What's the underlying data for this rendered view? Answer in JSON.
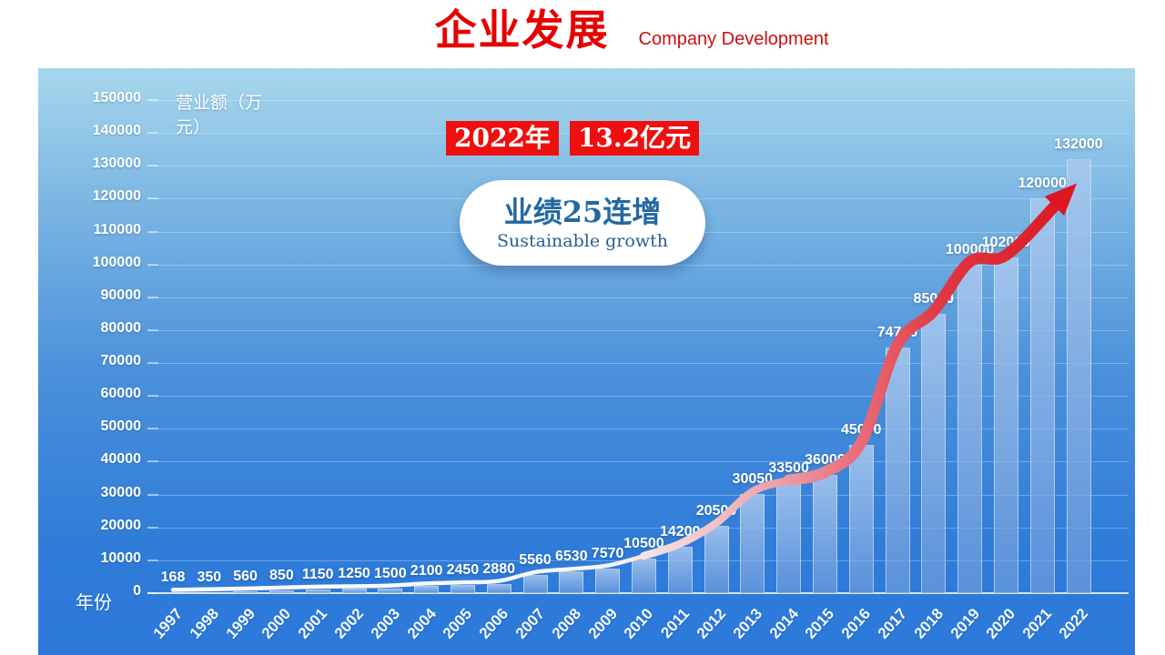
{
  "header": {
    "title": "企业发展",
    "subtitle": "Company Development"
  },
  "colors": {
    "accent_red": "#e60000",
    "chip_background": "#ee0f0f",
    "panel_gradient_top": "#a7d7ec",
    "panel_gradient_bottom": "#2c79da",
    "bar_fill": "#86aede",
    "trend_start": "#ffffff",
    "trend_end": "#dc1722",
    "axis_text": "#ffffff",
    "bubble_text": "#25689e"
  },
  "chart_data": {
    "type": "bar",
    "title": "企业发展 Company Development",
    "categories": [
      "1997",
      "1998",
      "1999",
      "2000",
      "2001",
      "2002",
      "2003",
      "2004",
      "2005",
      "2006",
      "2007",
      "2008",
      "2009",
      "2010",
      "2011",
      "2012",
      "2013",
      "2014",
      "2015",
      "2016",
      "2017",
      "2018",
      "2019",
      "2020",
      "2021",
      "2022"
    ],
    "values": [
      168,
      350,
      560,
      850,
      1150,
      1250,
      1500,
      2100,
      2450,
      2880,
      5560,
      6530,
      7570,
      10500,
      14200,
      20500,
      30050,
      33500,
      36000,
      45000,
      74700,
      85000,
      100000,
      102000,
      120000,
      132000
    ],
    "ylabel": "营业额（万元）",
    "ylabel_lines": [
      "营业额（万",
      "元）"
    ],
    "xlabel": "年份",
    "ylim": [
      0,
      150000
    ],
    "ytick_step": 10000,
    "grid": true,
    "legend": false,
    "trend": {
      "type": "arrow-line",
      "follows": "bar-tops",
      "color_start": "#ffffff",
      "color_end": "#dc1722",
      "description": "white-to-red thickening curve ending in red arrowhead at 2022"
    },
    "annotations": {
      "callout_year": "2022年",
      "callout_amount": "13.2亿元",
      "bubble_headline": "业绩25连增",
      "bubble_subtext": "Sustainable growth"
    }
  }
}
